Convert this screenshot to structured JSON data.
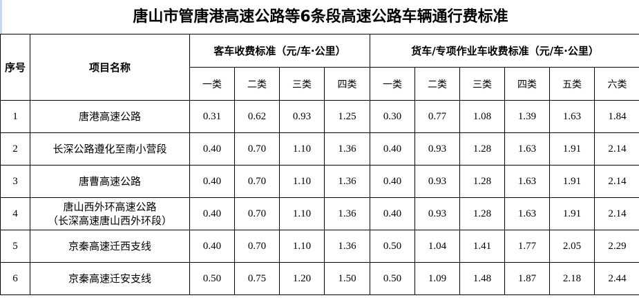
{
  "title": "唐山市管唐港高速公路等6条段高速公路车辆通行费标准",
  "headers": {
    "index": "序号",
    "name": "项目名称",
    "passenger_group": "客车收费标准（元/车·公里）",
    "truck_group": "货车/专项作业车收费标准（元/车·公里）",
    "passenger_classes": [
      "一类",
      "二类",
      "三类",
      "四类"
    ],
    "truck_classes": [
      "一类",
      "二类",
      "三类",
      "四类",
      "五类",
      "六类"
    ]
  },
  "rows": [
    {
      "index": "1",
      "name": "唐港高速公路",
      "name2": "",
      "passenger": [
        "0.31",
        "0.62",
        "0.93",
        "1.25"
      ],
      "truck": [
        "0.30",
        "0.77",
        "1.08",
        "1.39",
        "1.63",
        "1.84"
      ]
    },
    {
      "index": "2",
      "name": "长深公路遵化至南小营段",
      "name2": "",
      "passenger": [
        "0.40",
        "0.70",
        "1.10",
        "1.36"
      ],
      "truck": [
        "0.40",
        "0.93",
        "1.28",
        "1.63",
        "1.91",
        "2.14"
      ]
    },
    {
      "index": "3",
      "name": "唐曹高速公路",
      "name2": "",
      "passenger": [
        "0.40",
        "0.70",
        "1.10",
        "1.36"
      ],
      "truck": [
        "0.40",
        "0.93",
        "1.28",
        "1.63",
        "1.91",
        "2.14"
      ]
    },
    {
      "index": "4",
      "name": "唐山西外环高速公路",
      "name2": "（长深高速唐山西外环段）",
      "passenger": [
        "0.40",
        "0.70",
        "1.10",
        "1.36"
      ],
      "truck": [
        "0.40",
        "0.93",
        "1.28",
        "1.63",
        "1.91",
        "2.14"
      ]
    },
    {
      "index": "5",
      "name": "京秦高速迁西支线",
      "name2": "",
      "passenger": [
        "0.40",
        "0.70",
        "1.10",
        "1.36"
      ],
      "truck": [
        "0.50",
        "1.04",
        "1.41",
        "1.77",
        "2.05",
        "2.29"
      ]
    },
    {
      "index": "6",
      "name": "京秦高速迁安支线",
      "name2": "",
      "passenger": [
        "0.50",
        "0.75",
        "1.20",
        "1.50"
      ],
      "truck": [
        "0.50",
        "1.09",
        "1.48",
        "1.87",
        "2.18",
        "2.44"
      ]
    }
  ]
}
